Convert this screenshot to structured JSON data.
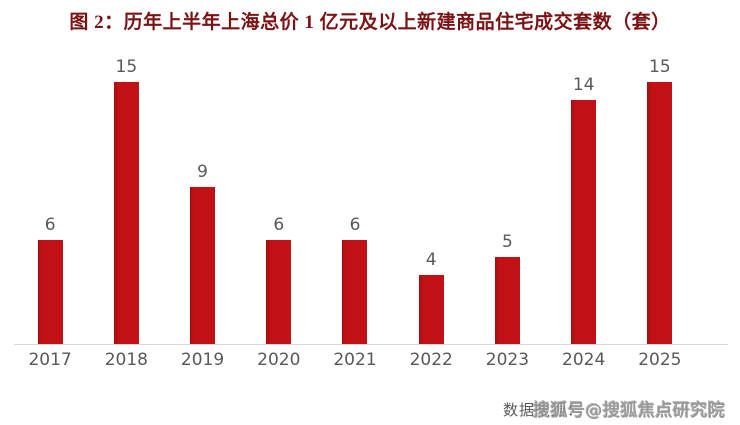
{
  "chart_data": {
    "type": "bar",
    "title": "图 2：历年上半年上海总价 1 亿元及以上新建商品住宅成交套数（套）",
    "categories": [
      "2017",
      "2018",
      "2019",
      "2020",
      "2021",
      "2022",
      "2023",
      "2024",
      "2025"
    ],
    "values": [
      6,
      15,
      9,
      6,
      6,
      4,
      5,
      14,
      15
    ],
    "xlabel": "",
    "ylabel": "",
    "ylim": [
      0,
      16
    ],
    "grid": false,
    "legend": false,
    "data_labels": true,
    "bar_color": "#c21114",
    "label_color": "#595959",
    "title_color": "#7d1214",
    "axis_color": "#d8d8d8"
  },
  "footer": {
    "source_label": "数据来源：",
    "watermark": "搜狐号@搜狐焦点研究院"
  }
}
